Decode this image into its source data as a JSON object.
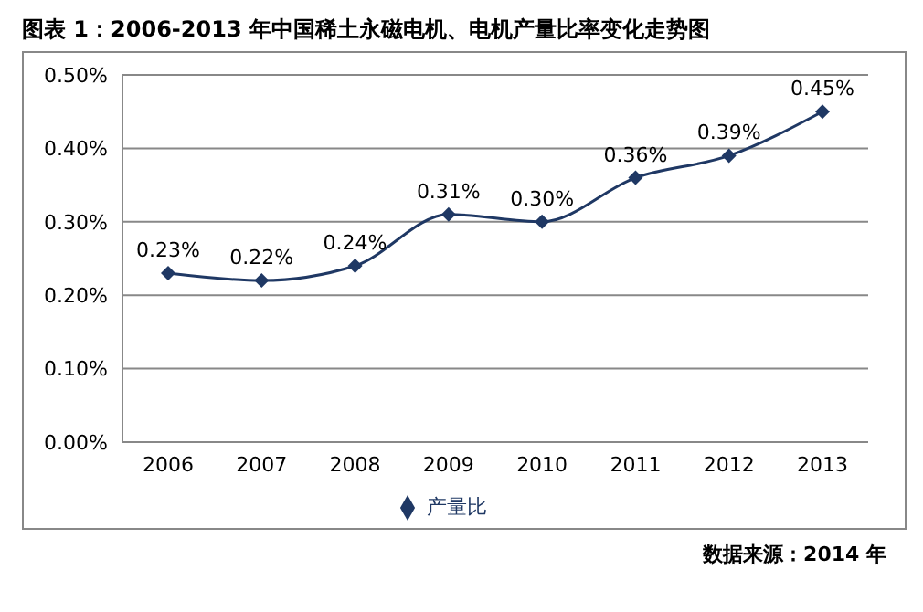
{
  "chart_data": {
    "type": "line",
    "title": "图表 1：2006-2013 年中国稀土永磁电机、电机产量比率变化走势图",
    "categories": [
      "2006",
      "2007",
      "2008",
      "2009",
      "2010",
      "2011",
      "2012",
      "2013"
    ],
    "series": [
      {
        "name": "产量比",
        "color": "#1f3864",
        "values": [
          0.23,
          0.22,
          0.24,
          0.31,
          0.3,
          0.36,
          0.39,
          0.45
        ],
        "value_labels": [
          "0.23%",
          "0.22%",
          "0.24%",
          "0.31%",
          "0.30%",
          "0.36%",
          "0.39%",
          "0.45%"
        ]
      }
    ],
    "ylim": [
      0,
      0.5
    ],
    "yticks": [
      {
        "value": 0,
        "label": "0.00%"
      },
      {
        "value": 0.1,
        "label": "0.10%"
      },
      {
        "value": 0.2,
        "label": "0.20%"
      },
      {
        "value": 0.3,
        "label": "0.30%"
      },
      {
        "value": 0.4,
        "label": "0.40%"
      },
      {
        "value": 0.5,
        "label": "0.50%"
      }
    ],
    "grid": "y",
    "legend": "bottom",
    "marker": "diamond",
    "line_style": "solid",
    "annotations": [
      "数据来源：2014 年"
    ]
  }
}
